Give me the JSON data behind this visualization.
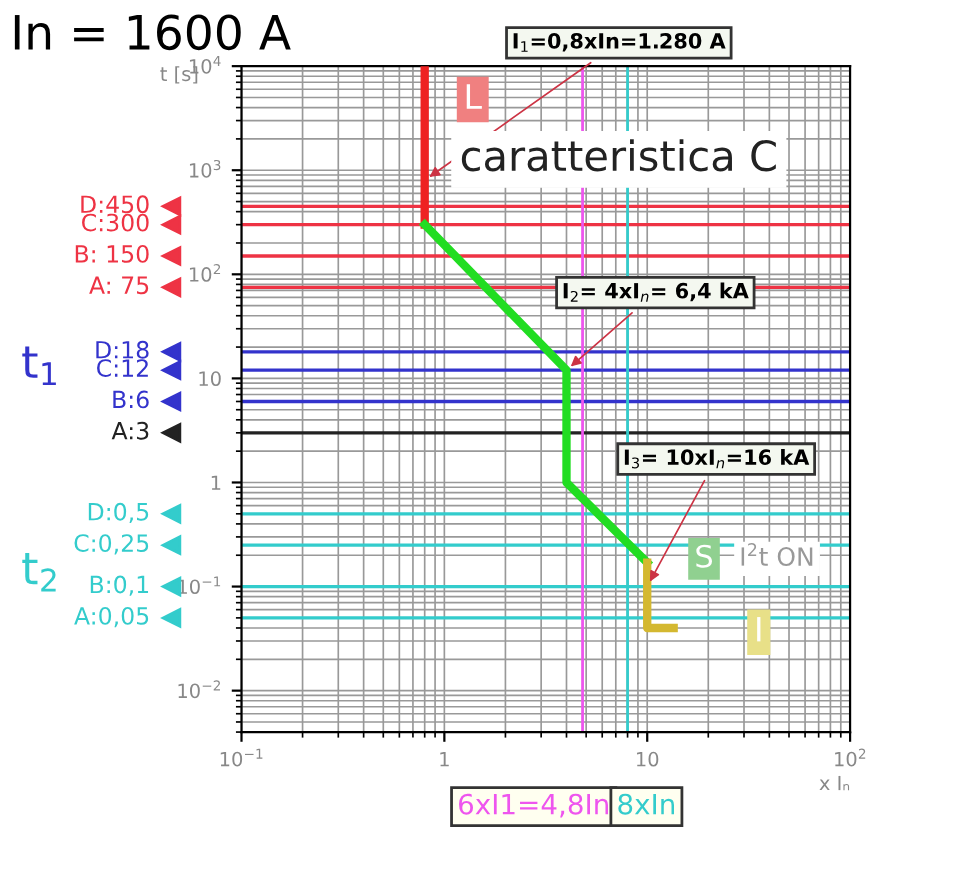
{
  "chart_data": {
    "type": "line",
    "title": "In = 1600 A",
    "xlabel": "x Iₙ",
    "ylabel": "t [s]",
    "log": "xy",
    "xlim": [
      0.1,
      100
    ],
    "ylim": [
      0.004,
      10000
    ],
    "xticks": [
      {
        "value": 0.1,
        "label": "10$^{−1}$"
      },
      1,
      10,
      {
        "value": 100,
        "label": "10$^{2}$"
      }
    ],
    "yticks": [
      {
        "value": 0.01,
        "label": "10$^{−2}$"
      },
      {
        "value": 0.1,
        "label": "10$^{−1}$"
      },
      1,
      10,
      {
        "value": 100,
        "label": "10$^{2}$"
      },
      {
        "value": 1000,
        "label": "10$^{3}$"
      },
      {
        "value": 10000,
        "label": "10$^{4}$"
      }
    ],
    "grid": true,
    "marker": "none",
    "line_style": "solid",
    "series": [
      {
        "color": "#ee2222",
        "x": [
          0.8,
          0.8
        ],
        "values": [
          10000,
          300
        ]
      },
      {
        "color": "#22dd22",
        "x": [
          0.8,
          4,
          4,
          10
        ],
        "values": [
          300,
          12,
          1,
          0.17
        ]
      },
      {
        "color": "#d4b830",
        "x": [
          10,
          10,
          13.5
        ],
        "values": [
          0.17,
          0.04,
          0.04
        ]
      }
    ],
    "ref_lines": [
      {
        "axis": "y",
        "value": 450,
        "label": "D:450",
        "color": "#ee3344"
      },
      {
        "axis": "y",
        "value": 300,
        "label": "C:300",
        "color": "#ee3344"
      },
      {
        "axis": "y",
        "value": 150,
        "label": "B: 150",
        "color": "#ee3344"
      },
      {
        "axis": "y",
        "value": 75,
        "label": "A: 75",
        "color": "#ee3344"
      },
      {
        "axis": "y",
        "value": 18,
        "label": "D:18",
        "color": "#3333cc"
      },
      {
        "axis": "y",
        "value": 12,
        "label": "C:12",
        "color": "#3333cc"
      },
      {
        "axis": "y",
        "value": 6,
        "label": "B:6",
        "color": "#3333cc"
      },
      {
        "axis": "y",
        "value": 3,
        "label": "A:3",
        "color": "#222222"
      },
      {
        "axis": "y",
        "value": 0.5,
        "label": "D:0,5",
        "color": "#33cccc"
      },
      {
        "axis": "y",
        "value": 0.25,
        "label": "C:0,25",
        "color": "#33cccc"
      },
      {
        "axis": "y",
        "value": 0.1,
        "label": "B:0,1",
        "color": "#33cccc"
      },
      {
        "axis": "y",
        "value": 0.05,
        "label": "A:0,05",
        "color": "#33cccc"
      },
      {
        "axis": "x",
        "value": 4.8,
        "label": "6xI1=4,8In",
        "color": "#ee55ee"
      },
      {
        "axis": "x",
        "value": 8,
        "label": "8xIn",
        "color": "#33cccc"
      }
    ],
    "annotations": [
      {
        "text": "I$_{1}$=0,8xIn=1.280 A",
        "x": 0.8,
        "y": 800
      },
      {
        "text": "I$_{2}$= 4xI$_{n}$= 6,4 kA",
        "x": 4,
        "y": 12
      },
      {
        "text": "I$_{3}$= 10xI$_{n}$=16 kA",
        "x": 10,
        "y": 0.1
      },
      "caratteristica C",
      "L",
      "S",
      "I$^{2}$t ON",
      "I",
      "t$_{1}$",
      "t$_{2}$"
    ]
  }
}
